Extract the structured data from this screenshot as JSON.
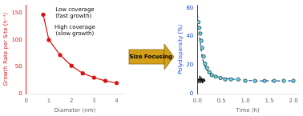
{
  "chart_data": [
    {
      "type": "line",
      "x": [
        0.75,
        1.0,
        1.5,
        2.0,
        2.5,
        3.0,
        3.5,
        4.0
      ],
      "series": [
        {
          "color": "#dd1111",
          "marker": "circle",
          "values": [
            147,
            100,
            72,
            52,
            38,
            30,
            24,
            20
          ]
        }
      ],
      "xlabel": "Diameter (nm)",
      "ylabel": "Growth Rate per Site (h⁻¹)",
      "xlim": [
        0,
        4.3
      ],
      "ylim": [
        0,
        165
      ],
      "xticks": [
        0,
        1,
        2,
        3,
        4
      ],
      "yticks": [
        0,
        50,
        100,
        150
      ],
      "grid": false,
      "annotations": [
        "Low coverage\n(fast growth)",
        "High coverage\n(slow growth)"
      ]
    },
    {
      "type": "scatter",
      "series": [
        {
          "type": "scatter",
          "color": "#66dddd",
          "marker": "circle",
          "x": [
            0.02,
            0.04,
            0.06,
            0.08,
            0.1,
            0.13,
            0.16,
            0.2,
            0.25,
            0.3,
            0.38,
            0.48,
            0.58,
            0.7,
            0.85,
            1.0,
            1.2,
            1.4,
            1.6,
            1.8,
            2.0
          ],
          "values": [
            50,
            46,
            42,
            37,
            32,
            26,
            21,
            18,
            15,
            13,
            12,
            11,
            10,
            10,
            10,
            9,
            9,
            9,
            9,
            9,
            9
          ]
        },
        {
          "type": "scatter",
          "color": "#111111",
          "marker": "circle",
          "x": [
            0.01,
            0.02,
            0.03,
            0.04,
            0.05,
            0.06,
            0.07,
            0.08,
            0.09,
            0.1,
            0.11,
            0.12,
            0.13,
            0.14,
            0.15,
            0.02,
            0.04,
            0.06,
            0.08,
            0.1,
            0.12,
            0.05,
            0.08,
            0.11
          ],
          "values": [
            9,
            10,
            10,
            9,
            11,
            10,
            9,
            10,
            9,
            10,
            9,
            10,
            9,
            10,
            9,
            8,
            9,
            8,
            9,
            8,
            9,
            12,
            11,
            8
          ]
        },
        {
          "type": "line",
          "color": "#1144cc",
          "line_style": "dashed",
          "x": [
            0.0,
            0.02,
            0.05,
            0.1,
            0.18,
            0.3,
            0.5,
            0.8,
            1.2,
            2.0
          ],
          "values": [
            55,
            50,
            38,
            25,
            17,
            13,
            11,
            10,
            9,
            9
          ]
        }
      ],
      "xlabel": "Time (h)",
      "ylabel": "Polydispersity (%)",
      "xlim": [
        0,
        2.1
      ],
      "ylim": [
        0,
        62
      ],
      "xticks": [
        {
          "value": 0,
          "label": "0.0"
        },
        0.5,
        {
          "value": 1.0,
          "label": "1.0"
        },
        1.5,
        {
          "value": 2.0,
          "label": "2.0"
        }
      ],
      "yticks": [
        0,
        20,
        40,
        60
      ],
      "grid": false
    }
  ],
  "annotations": [
    "Size Focusing"
  ]
}
